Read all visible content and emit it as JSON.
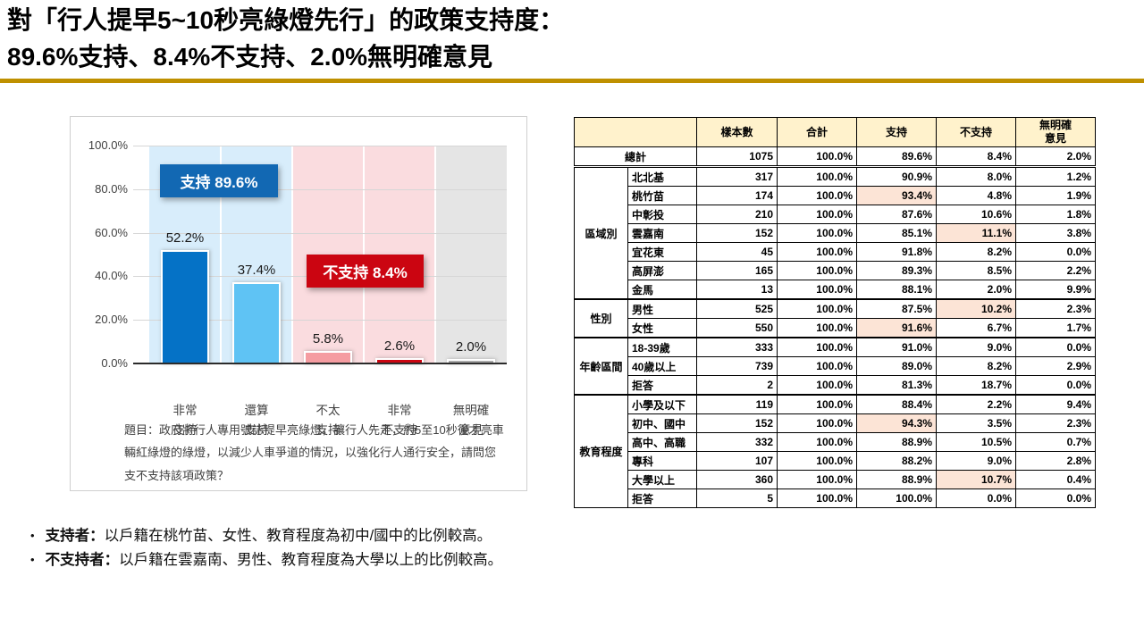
{
  "slide": {
    "title_line1": "對「行人提早5~10秒亮綠燈先行」的政策支持度：",
    "title_line2": "89.6%支持、8.4%不支持、2.0%無明確意見",
    "accent_color": "#BF9000"
  },
  "chart_data": {
    "type": "bar",
    "title": "對「行人提早5~10秒亮綠燈先行」的政策支持度",
    "categories": [
      "非常支持",
      "還算支持",
      "不太支持",
      "非常不支持",
      "無明確意見"
    ],
    "category_lines": [
      [
        "非常",
        "支持"
      ],
      [
        "還算",
        "支持"
      ],
      [
        "不太",
        "支持"
      ],
      [
        "非常",
        "不支持"
      ],
      [
        "無明確",
        "意見"
      ]
    ],
    "values": [
      52.2,
      37.4,
      5.8,
      2.6,
      2.0
    ],
    "value_labels": [
      "52.2%",
      "37.4%",
      "5.8%",
      "2.6%",
      "2.0%"
    ],
    "ylim": [
      0,
      100
    ],
    "grid": true,
    "yticks": [
      {
        "label": "100.0%",
        "value": 100
      },
      {
        "label": "80.0%",
        "value": 80
      },
      {
        "label": "60.0%",
        "value": 60
      },
      {
        "label": "40.0%",
        "value": 40
      },
      {
        "label": "20.0%",
        "value": 20
      },
      {
        "label": "0.0%",
        "value": 0
      }
    ],
    "bar_colors": [
      "#0572C6",
      "#5FC3F4",
      "#F59CA1",
      "#CB0511",
      "#A9A9A9"
    ],
    "band_colors": [
      "#D8EDFB",
      "#D8EDFB",
      "#FADCDF",
      "#FADCDF",
      "#E5E5E5"
    ],
    "annotations": [
      {
        "name": "support-annotation",
        "label": "支持 89.6%",
        "color": "#1268B3"
      },
      {
        "name": "oppose-annotation",
        "label": "不支持 8.4%",
        "color": "#CB0511"
      }
    ],
    "question": "題目：政府將行人專用號誌提早亮綠燈，讓行人先走，約5至10秒後才亮車輛紅綠燈的綠燈，以減少人車爭道的情況，以強化行人通行安全，請問您支不支持該項政策？"
  },
  "table": {
    "headers": [
      "樣本數",
      "合計",
      "支持",
      "不支持",
      "無明確\n意見"
    ],
    "header_fill": "#FFF2CC",
    "highlight_fill": "#FCE4D6",
    "total_row": {
      "label": "總計",
      "values": [
        "1075",
        "100.0%",
        "89.6%",
        "8.4%",
        "2.0%"
      ]
    },
    "groups": [
      {
        "name": "區域別",
        "rows": [
          {
            "label": "北北基",
            "values": [
              "317",
              "100.0%",
              "90.9%",
              "8.0%",
              "1.2%"
            ],
            "highlight": []
          },
          {
            "label": "桃竹苗",
            "values": [
              "174",
              "100.0%",
              "93.4%",
              "4.8%",
              "1.9%"
            ],
            "highlight": [
              2
            ]
          },
          {
            "label": "中彰投",
            "values": [
              "210",
              "100.0%",
              "87.6%",
              "10.6%",
              "1.8%"
            ],
            "highlight": []
          },
          {
            "label": "雲嘉南",
            "values": [
              "152",
              "100.0%",
              "85.1%",
              "11.1%",
              "3.8%"
            ],
            "highlight": [
              3
            ]
          },
          {
            "label": "宜花東",
            "values": [
              "45",
              "100.0%",
              "91.8%",
              "8.2%",
              "0.0%"
            ],
            "highlight": []
          },
          {
            "label": "高屏澎",
            "values": [
              "165",
              "100.0%",
              "89.3%",
              "8.5%",
              "2.2%"
            ],
            "highlight": []
          },
          {
            "label": "金馬",
            "values": [
              "13",
              "100.0%",
              "88.1%",
              "2.0%",
              "9.9%"
            ],
            "highlight": []
          }
        ]
      },
      {
        "name": "性別",
        "rows": [
          {
            "label": "男性",
            "values": [
              "525",
              "100.0%",
              "87.5%",
              "10.2%",
              "2.3%"
            ],
            "highlight": [
              3
            ]
          },
          {
            "label": "女性",
            "values": [
              "550",
              "100.0%",
              "91.6%",
              "6.7%",
              "1.7%"
            ],
            "highlight": [
              2
            ]
          }
        ]
      },
      {
        "name": "年齡區間",
        "rows": [
          {
            "label": "18-39歲",
            "values": [
              "333",
              "100.0%",
              "91.0%",
              "9.0%",
              "0.0%"
            ],
            "highlight": []
          },
          {
            "label": "40歲以上",
            "values": [
              "739",
              "100.0%",
              "89.0%",
              "8.2%",
              "2.9%"
            ],
            "highlight": []
          },
          {
            "label": "拒答",
            "values": [
              "2",
              "100.0%",
              "81.3%",
              "18.7%",
              "0.0%"
            ],
            "highlight": []
          }
        ]
      },
      {
        "name": "教育程度",
        "rows": [
          {
            "label": "小學及以下",
            "values": [
              "119",
              "100.0%",
              "88.4%",
              "2.2%",
              "9.4%"
            ],
            "highlight": []
          },
          {
            "label": "初中、國中",
            "values": [
              "152",
              "100.0%",
              "94.3%",
              "3.5%",
              "2.3%"
            ],
            "highlight": [
              2
            ]
          },
          {
            "label": "高中、高職",
            "values": [
              "332",
              "100.0%",
              "88.9%",
              "10.5%",
              "0.7%"
            ],
            "highlight": []
          },
          {
            "label": "專科",
            "values": [
              "107",
              "100.0%",
              "88.2%",
              "9.0%",
              "2.8%"
            ],
            "highlight": []
          },
          {
            "label": "大學以上",
            "values": [
              "360",
              "100.0%",
              "88.9%",
              "10.7%",
              "0.4%"
            ],
            "highlight": [
              3
            ]
          },
          {
            "label": "拒答",
            "values": [
              "5",
              "100.0%",
              "100.0%",
              "0.0%",
              "0.0%"
            ],
            "highlight": []
          }
        ]
      }
    ]
  },
  "notes": {
    "bullet_glyph": "•",
    "items": [
      {
        "bold": "支持者：",
        "text": "以戶籍在桃竹苗、女性、教育程度為初中/國中的比例較高。"
      },
      {
        "bold": "不支持者：",
        "text": "以戶籍在雲嘉南、男性、教育程度為大學以上的比例較高。"
      }
    ]
  }
}
